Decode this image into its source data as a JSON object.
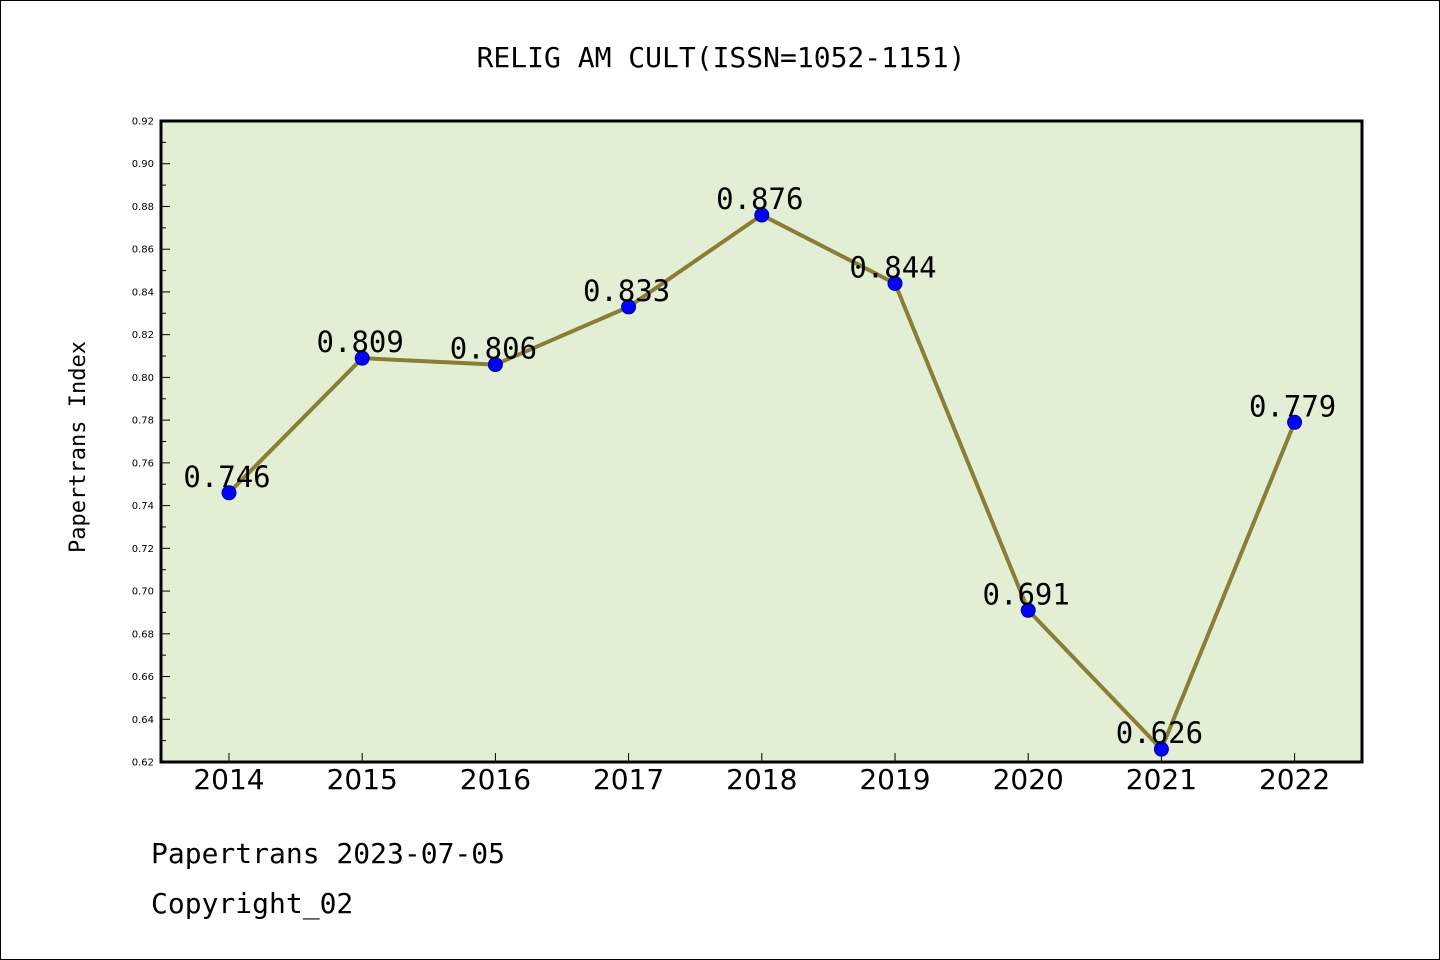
{
  "chart_data": {
    "type": "line",
    "title": "RELIG AM CULT(ISSN=1052-1151)",
    "xlabel": "",
    "ylabel": "Papertrans Index",
    "categories": [
      "2014",
      "2015",
      "2016",
      "2017",
      "2018",
      "2019",
      "2020",
      "2021",
      "2022"
    ],
    "series": [
      {
        "values": [
          0.746,
          0.809,
          0.806,
          0.833,
          0.876,
          0.844,
          0.691,
          0.626,
          0.779
        ],
        "data_labels": [
          "0.746",
          "0.809",
          "0.806",
          "0.833",
          "0.876",
          "0.844",
          "0.691",
          "0.626",
          "0.779"
        ]
      }
    ],
    "ylim": [
      0.62,
      0.92
    ],
    "yticks": [
      "0.62",
      "0.64",
      "0.66",
      "0.68",
      "0.70",
      "0.72",
      "0.74",
      "0.76",
      "0.78",
      "0.80",
      "0.82",
      "0.84",
      "0.86",
      "0.88",
      "0.90",
      "0.92"
    ],
    "grid": false,
    "legend": "none",
    "colors": {
      "plot_background": "#e2efd5",
      "line": "#8b7d35",
      "marker": "#0000ff"
    }
  },
  "footer": {
    "line1": "Papertrans 2023-07-05",
    "line2": "Copyright_02"
  }
}
